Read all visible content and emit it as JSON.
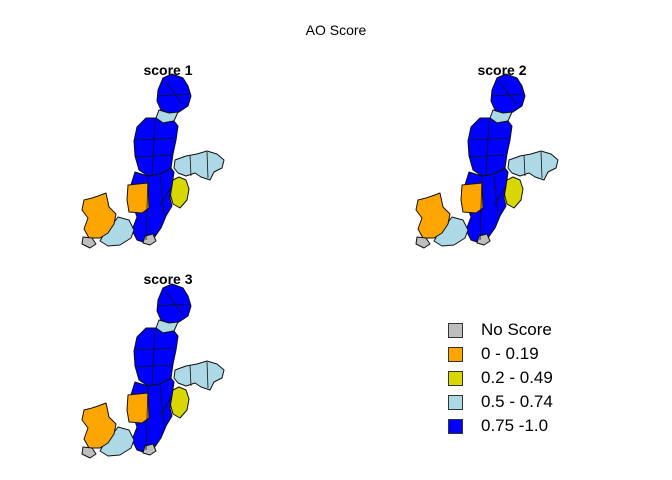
{
  "title": "AO Score",
  "colors": {
    "no_score": "#bebebe",
    "range1": "#ffa500",
    "range2": "#d8d800",
    "range3": "#add8e6",
    "range4": "#0000ff",
    "border": "#111111"
  },
  "panels": [
    {
      "title": "score 1"
    },
    {
      "title": "score 2"
    },
    {
      "title": "score 3"
    }
  ],
  "legend": [
    {
      "label": "No Score",
      "color": "#bebebe"
    },
    {
      "label": "0 - 0.19",
      "color": "#ffa500"
    },
    {
      "label": "0.2 - 0.49",
      "color": "#d8d800"
    },
    {
      "label": "0.5 - 0.74",
      "color": "#add8e6"
    },
    {
      "label": "0.75 -1.0",
      "color": "#0000ff"
    }
  ]
}
